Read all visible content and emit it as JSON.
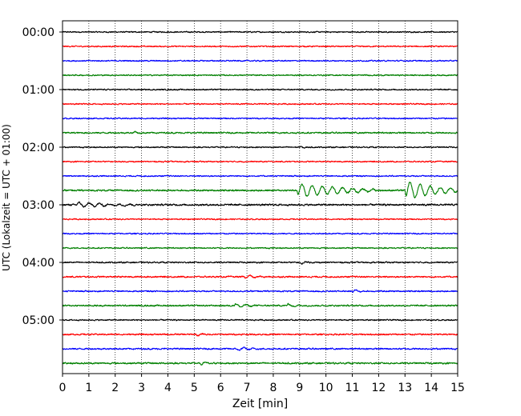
{
  "chart_data": {
    "type": "line",
    "title": "",
    "xlabel": "Zeit  [min]",
    "ylabel": "UTC (Lokalzeit = UTC + 01:00)",
    "xlim": [
      0,
      15
    ],
    "x_ticks": [
      "0",
      "1",
      "2",
      "3",
      "4",
      "5",
      "6",
      "7",
      "8",
      "9",
      "10",
      "11",
      "12",
      "13",
      "14",
      "15"
    ],
    "y_ticks": [
      "00:00",
      "01:00",
      "02:00",
      "03:00",
      "04:00",
      "05:00"
    ],
    "rows_per_hour": 4,
    "minutes_per_row": 15,
    "row_colors": [
      "#000000",
      "#ff0000",
      "#0000ff",
      "#008000"
    ],
    "grid": {
      "x_vertical_dotted": true
    },
    "series": [
      {
        "start": "00:00",
        "amplitude": 1.0,
        "events": []
      },
      {
        "start": "00:15",
        "amplitude": 1.0,
        "events": []
      },
      {
        "start": "00:30",
        "amplitude": 1.0,
        "events": []
      },
      {
        "start": "00:45",
        "amplitude": 1.0,
        "events": []
      },
      {
        "start": "01:00",
        "amplitude": 1.0,
        "events": []
      },
      {
        "start": "01:15",
        "amplitude": 1.0,
        "events": []
      },
      {
        "start": "01:30",
        "amplitude": 1.0,
        "events": []
      },
      {
        "start": "01:45",
        "amplitude": 1.2,
        "events": [
          {
            "t": 2.7,
            "amp": 2.5,
            "dur": 0.3
          }
        ]
      },
      {
        "start": "02:00",
        "amplitude": 1.0,
        "events": [
          {
            "t": 9.0,
            "amp": 2.0,
            "dur": 0.3
          }
        ]
      },
      {
        "start": "02:15",
        "amplitude": 1.0,
        "events": []
      },
      {
        "start": "02:30",
        "amplitude": 1.0,
        "events": []
      },
      {
        "start": "02:45",
        "amplitude": 1.3,
        "events": [
          {
            "t": 8.9,
            "amp": 9.0,
            "dur": 3.0
          },
          {
            "t": 13.0,
            "amp": 12.0,
            "dur": 2.0
          }
        ]
      },
      {
        "start": "03:00",
        "amplitude": 1.4,
        "events": [
          {
            "t": 0.5,
            "amp": 3.0,
            "dur": 2.5
          }
        ]
      },
      {
        "start": "03:15",
        "amplitude": 1.0,
        "events": []
      },
      {
        "start": "03:30",
        "amplitude": 1.0,
        "events": []
      },
      {
        "start": "03:45",
        "amplitude": 1.0,
        "events": []
      },
      {
        "start": "04:00",
        "amplitude": 1.1,
        "events": [
          {
            "t": 9.0,
            "amp": 2.5,
            "dur": 0.4
          }
        ]
      },
      {
        "start": "04:15",
        "amplitude": 1.2,
        "events": [
          {
            "t": 6.9,
            "amp": 2.5,
            "dur": 0.8
          }
        ]
      },
      {
        "start": "04:30",
        "amplitude": 1.1,
        "events": [
          {
            "t": 11.0,
            "amp": 2.5,
            "dur": 0.4
          }
        ]
      },
      {
        "start": "04:45",
        "amplitude": 1.2,
        "events": [
          {
            "t": 6.5,
            "amp": 2.5,
            "dur": 1.0
          },
          {
            "t": 8.5,
            "amp": 2.5,
            "dur": 0.5
          }
        ]
      },
      {
        "start": "05:00",
        "amplitude": 1.0,
        "events": []
      },
      {
        "start": "05:15",
        "amplitude": 1.2,
        "events": [
          {
            "t": 5.0,
            "amp": 2.2,
            "dur": 0.5
          }
        ]
      },
      {
        "start": "05:30",
        "amplitude": 1.2,
        "events": [
          {
            "t": 6.6,
            "amp": 2.0,
            "dur": 1.0
          }
        ]
      },
      {
        "start": "05:45",
        "amplitude": 1.3,
        "events": [
          {
            "t": 5.2,
            "amp": 2.5,
            "dur": 0.6
          }
        ]
      }
    ]
  }
}
